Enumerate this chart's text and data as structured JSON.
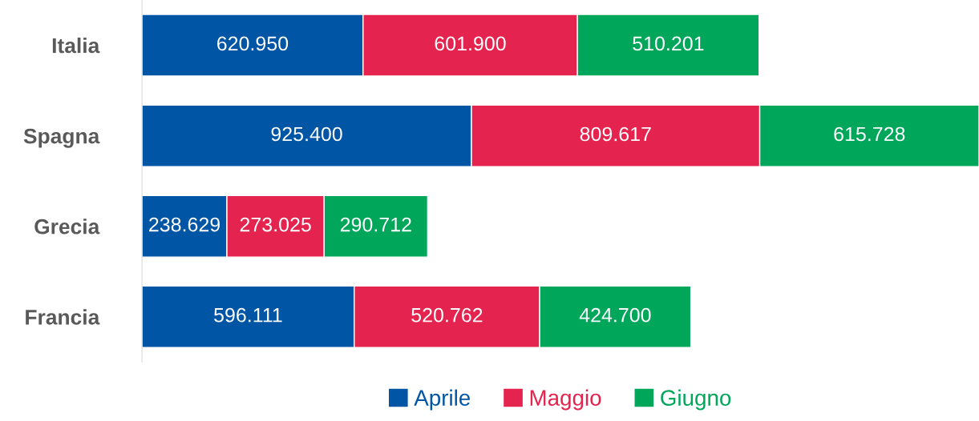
{
  "chart_data": {
    "type": "bar",
    "orientation": "horizontal",
    "stacked": true,
    "categories": [
      "Italia",
      "Spagna",
      "Grecia",
      "Francia"
    ],
    "series": [
      {
        "name": "Aprile",
        "color": "#0055a4",
        "values": [
          620950,
          925400,
          238629,
          596111
        ],
        "value_labels": [
          "620.950",
          "925.400",
          "238.629",
          "596.111"
        ]
      },
      {
        "name": "Maggio",
        "color": "#e5234f",
        "values": [
          601900,
          809617,
          273025,
          520762
        ],
        "value_labels": [
          "601.900",
          "809.617",
          "273.025",
          "520.762"
        ]
      },
      {
        "name": "Giugno",
        "color": "#00a65a",
        "values": [
          510201,
          615728,
          290712,
          424700
        ],
        "value_labels": [
          "510.201",
          "615.728",
          "290.712",
          "424.700"
        ]
      }
    ],
    "legend": "bottom",
    "grid": false
  }
}
